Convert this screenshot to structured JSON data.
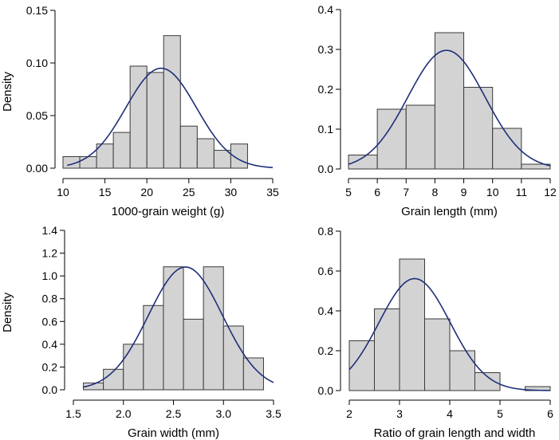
{
  "chart_data": [
    {
      "type": "bar",
      "variant": "histogram-with-density-curve",
      "xlabel": "1000-grain weight (g)",
      "ylabel": "Density",
      "xlim": [
        10,
        35
      ],
      "ylim": [
        0,
        0.15
      ],
      "xticks": [
        10,
        15,
        20,
        25,
        30,
        35
      ],
      "xtick_labels": [
        "10",
        "15",
        "20",
        "25",
        "30",
        "35"
      ],
      "yticks": [
        0,
        0.05,
        0.1,
        0.15
      ],
      "ytick_labels": [
        "0.00",
        "0.05",
        "0.10",
        "0.15"
      ],
      "bins": [
        {
          "x0": 10,
          "x1": 12,
          "density": 0.011
        },
        {
          "x0": 12,
          "x1": 14,
          "density": 0.011
        },
        {
          "x0": 14,
          "x1": 16,
          "density": 0.023
        },
        {
          "x0": 16,
          "x1": 18,
          "density": 0.034
        },
        {
          "x0": 18,
          "x1": 20,
          "density": 0.097
        },
        {
          "x0": 20,
          "x1": 22,
          "density": 0.091
        },
        {
          "x0": 22,
          "x1": 24,
          "density": 0.126
        },
        {
          "x0": 24,
          "x1": 26,
          "density": 0.04
        },
        {
          "x0": 26,
          "x1": 28,
          "density": 0.028
        },
        {
          "x0": 28,
          "x1": 30,
          "density": 0.017
        },
        {
          "x0": 30,
          "x1": 32,
          "density": 0.023
        }
      ],
      "curve": {
        "type": "normal",
        "mean": 21.7,
        "sd": 4.2,
        "x_range": [
          10.5,
          35
        ]
      }
    },
    {
      "type": "bar",
      "variant": "histogram-with-density-curve",
      "xlabel": "Grain length (mm)",
      "ylabel": "",
      "xlim": [
        5,
        12
      ],
      "ylim": [
        0,
        0.4
      ],
      "xticks": [
        5,
        6,
        7,
        8,
        9,
        10,
        11,
        12
      ],
      "xtick_labels": [
        "5",
        "6",
        "7",
        "8",
        "9",
        "10",
        "11",
        "12"
      ],
      "yticks": [
        0,
        0.1,
        0.2,
        0.3,
        0.4
      ],
      "ytick_labels": [
        "0.0",
        "0.1",
        "0.2",
        "0.3",
        "0.4"
      ],
      "bins": [
        {
          "x0": 5,
          "x1": 6,
          "density": 0.035
        },
        {
          "x0": 6,
          "x1": 7,
          "density": 0.15
        },
        {
          "x0": 7,
          "x1": 8,
          "density": 0.16
        },
        {
          "x0": 8,
          "x1": 9,
          "density": 0.342
        },
        {
          "x0": 9,
          "x1": 10,
          "density": 0.205
        },
        {
          "x0": 10,
          "x1": 11,
          "density": 0.102
        },
        {
          "x0": 11,
          "x1": 12,
          "density": 0.012
        }
      ],
      "curve": {
        "type": "normal",
        "mean": 8.4,
        "sd": 1.34,
        "x_range": [
          5,
          12
        ]
      }
    },
    {
      "type": "bar",
      "variant": "histogram-with-density-curve",
      "xlabel": "Grain width (mm)",
      "ylabel": "Density",
      "xlim": [
        1.5,
        3.5
      ],
      "ylim": [
        0,
        1.4
      ],
      "xticks": [
        1.5,
        2.0,
        2.5,
        3.0,
        3.5
      ],
      "xtick_labels": [
        "1.5",
        "2.0",
        "2.5",
        "3.0",
        "3.5"
      ],
      "yticks": [
        0,
        0.2,
        0.4,
        0.6,
        0.8,
        1.0,
        1.2,
        1.4
      ],
      "ytick_labels": [
        "0.0",
        "0.2",
        "0.4",
        "0.6",
        "0.8",
        "1.0",
        "1.2",
        "1.4"
      ],
      "bins": [
        {
          "x0": 1.6,
          "x1": 1.8,
          "density": 0.06
        },
        {
          "x0": 1.8,
          "x1": 2.0,
          "density": 0.18
        },
        {
          "x0": 2.0,
          "x1": 2.2,
          "density": 0.4
        },
        {
          "x0": 2.2,
          "x1": 2.4,
          "density": 0.74
        },
        {
          "x0": 2.4,
          "x1": 2.6,
          "density": 1.08
        },
        {
          "x0": 2.6,
          "x1": 2.8,
          "density": 0.62
        },
        {
          "x0": 2.8,
          "x1": 3.0,
          "density": 1.08
        },
        {
          "x0": 3.0,
          "x1": 3.2,
          "density": 0.56
        },
        {
          "x0": 3.2,
          "x1": 3.4,
          "density": 0.28
        }
      ],
      "curve": {
        "type": "normal",
        "mean": 2.62,
        "sd": 0.37,
        "x_range": [
          1.6,
          3.5
        ]
      }
    },
    {
      "type": "bar",
      "variant": "histogram-with-density-curve",
      "xlabel": "Ratio of grain length and width",
      "ylabel": "",
      "xlim": [
        2,
        6
      ],
      "ylim": [
        0,
        0.8
      ],
      "xticks": [
        2,
        3,
        4,
        5,
        6
      ],
      "xtick_labels": [
        "2",
        "3",
        "4",
        "5",
        "6"
      ],
      "yticks": [
        0,
        0.2,
        0.4,
        0.6,
        0.8
      ],
      "ytick_labels": [
        "0.0",
        "0.2",
        "0.4",
        "0.6",
        "0.8"
      ],
      "bins": [
        {
          "x0": 2.0,
          "x1": 2.5,
          "density": 0.25
        },
        {
          "x0": 2.5,
          "x1": 3.0,
          "density": 0.41
        },
        {
          "x0": 3.0,
          "x1": 3.5,
          "density": 0.66
        },
        {
          "x0": 3.5,
          "x1": 4.0,
          "density": 0.36
        },
        {
          "x0": 4.0,
          "x1": 4.5,
          "density": 0.2
        },
        {
          "x0": 4.5,
          "x1": 5.0,
          "density": 0.09
        },
        {
          "x0": 5.0,
          "x1": 5.5,
          "density": 0.0
        },
        {
          "x0": 5.5,
          "x1": 6.0,
          "density": 0.02
        }
      ],
      "curve": {
        "type": "normal",
        "mean": 3.3,
        "sd": 0.71,
        "x_range": [
          2,
          6
        ]
      }
    }
  ]
}
